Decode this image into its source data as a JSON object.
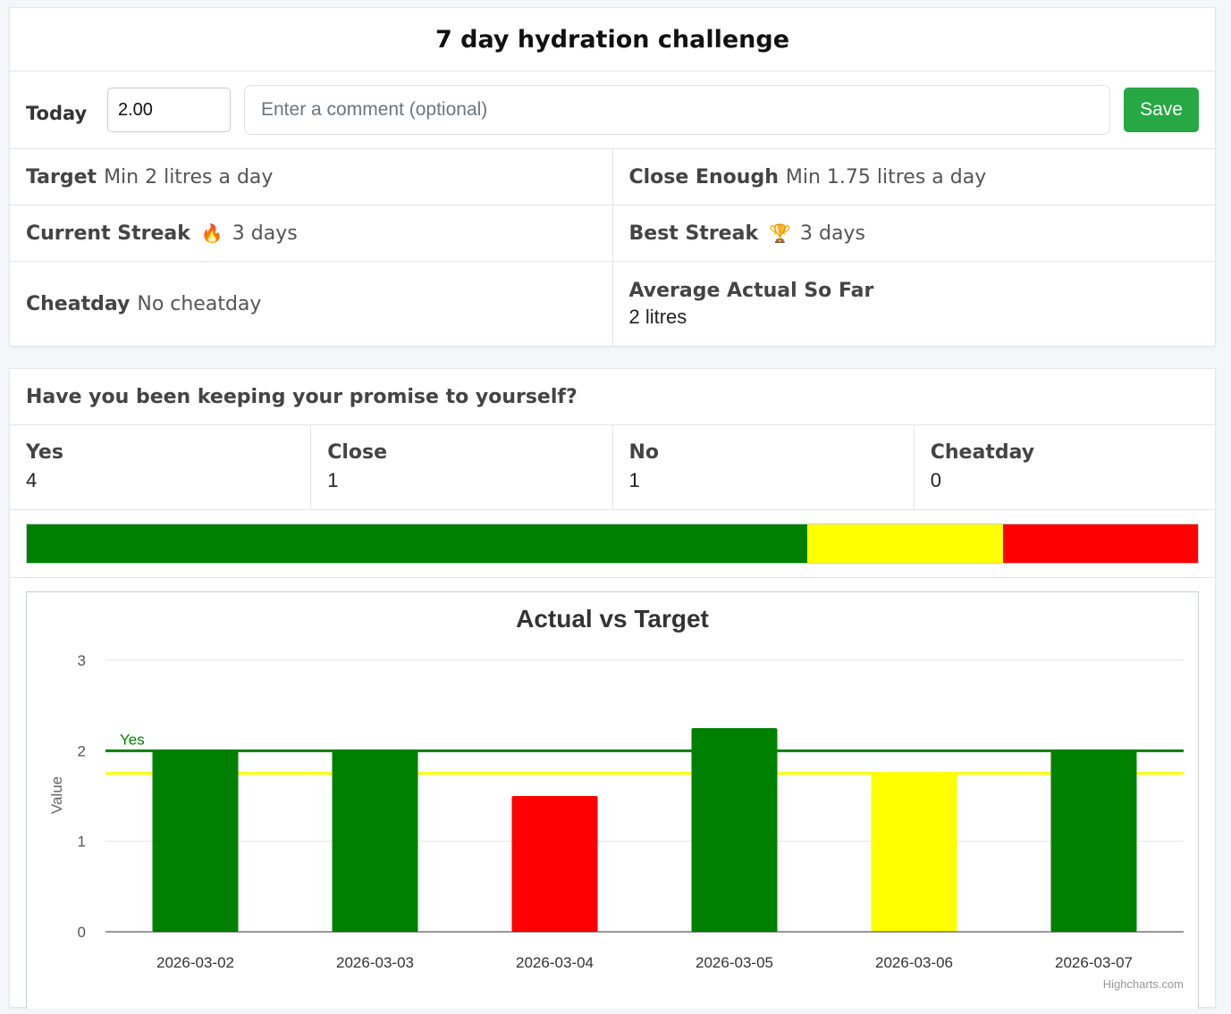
{
  "header": {
    "title": "7 day hydration challenge"
  },
  "today": {
    "label": "Today",
    "amount_value": "2.00",
    "comment_placeholder": "Enter a comment (optional)",
    "save_label": "Save"
  },
  "stats": {
    "target_label": "Target",
    "target_value": "Min 2 litres a day",
    "close_label": "Close Enough",
    "close_value": "Min 1.75 litres a day",
    "current_streak_label": "Current Streak",
    "current_streak_icon": "fire-icon",
    "current_streak_value": "3 days",
    "best_streak_label": "Best Streak",
    "best_streak_icon": "trophy-icon",
    "best_streak_value": "3 days",
    "cheatday_label": "Cheatday",
    "cheatday_value": "No cheatday",
    "average_label": "Average Actual So Far",
    "average_value": "2 litres"
  },
  "promise": {
    "title": "Have you been keeping your promise to yourself?",
    "counts": [
      {
        "label": "Yes",
        "value": "4"
      },
      {
        "label": "Close",
        "value": "1"
      },
      {
        "label": "No",
        "value": "1"
      },
      {
        "label": "Cheatday",
        "value": "0"
      }
    ],
    "progress": [
      {
        "status": "yes",
        "fraction": 0.6667,
        "color": "#008000"
      },
      {
        "status": "close",
        "fraction": 0.1667,
        "color": "#ffff00"
      },
      {
        "status": "no",
        "fraction": 0.1666,
        "color": "#ff0000"
      }
    ]
  },
  "colors": {
    "yes": "#008000",
    "close": "#ffff00",
    "no": "#ff0000",
    "save": "#28a745"
  },
  "chart_data": {
    "type": "bar",
    "title": "Actual vs Target",
    "ylabel": "Value",
    "xlabel": "",
    "ylim": [
      0,
      3
    ],
    "yticks": [
      0,
      1,
      2,
      3
    ],
    "categories": [
      "2026-03-02",
      "2026-03-03",
      "2026-03-04",
      "2026-03-05",
      "2026-03-06",
      "2026-03-07"
    ],
    "values": [
      2,
      2,
      1.5,
      2.25,
      1.75,
      2
    ],
    "bar_colors": [
      "#008000",
      "#008000",
      "#ff0000",
      "#008000",
      "#ffff00",
      "#008000"
    ],
    "plot_lines": [
      {
        "value": 2,
        "label": "Yes",
        "color": "#008000"
      },
      {
        "value": 1.75,
        "label": "",
        "color": "#ffff00"
      }
    ],
    "grid": true,
    "credit": "Highcharts.com"
  }
}
